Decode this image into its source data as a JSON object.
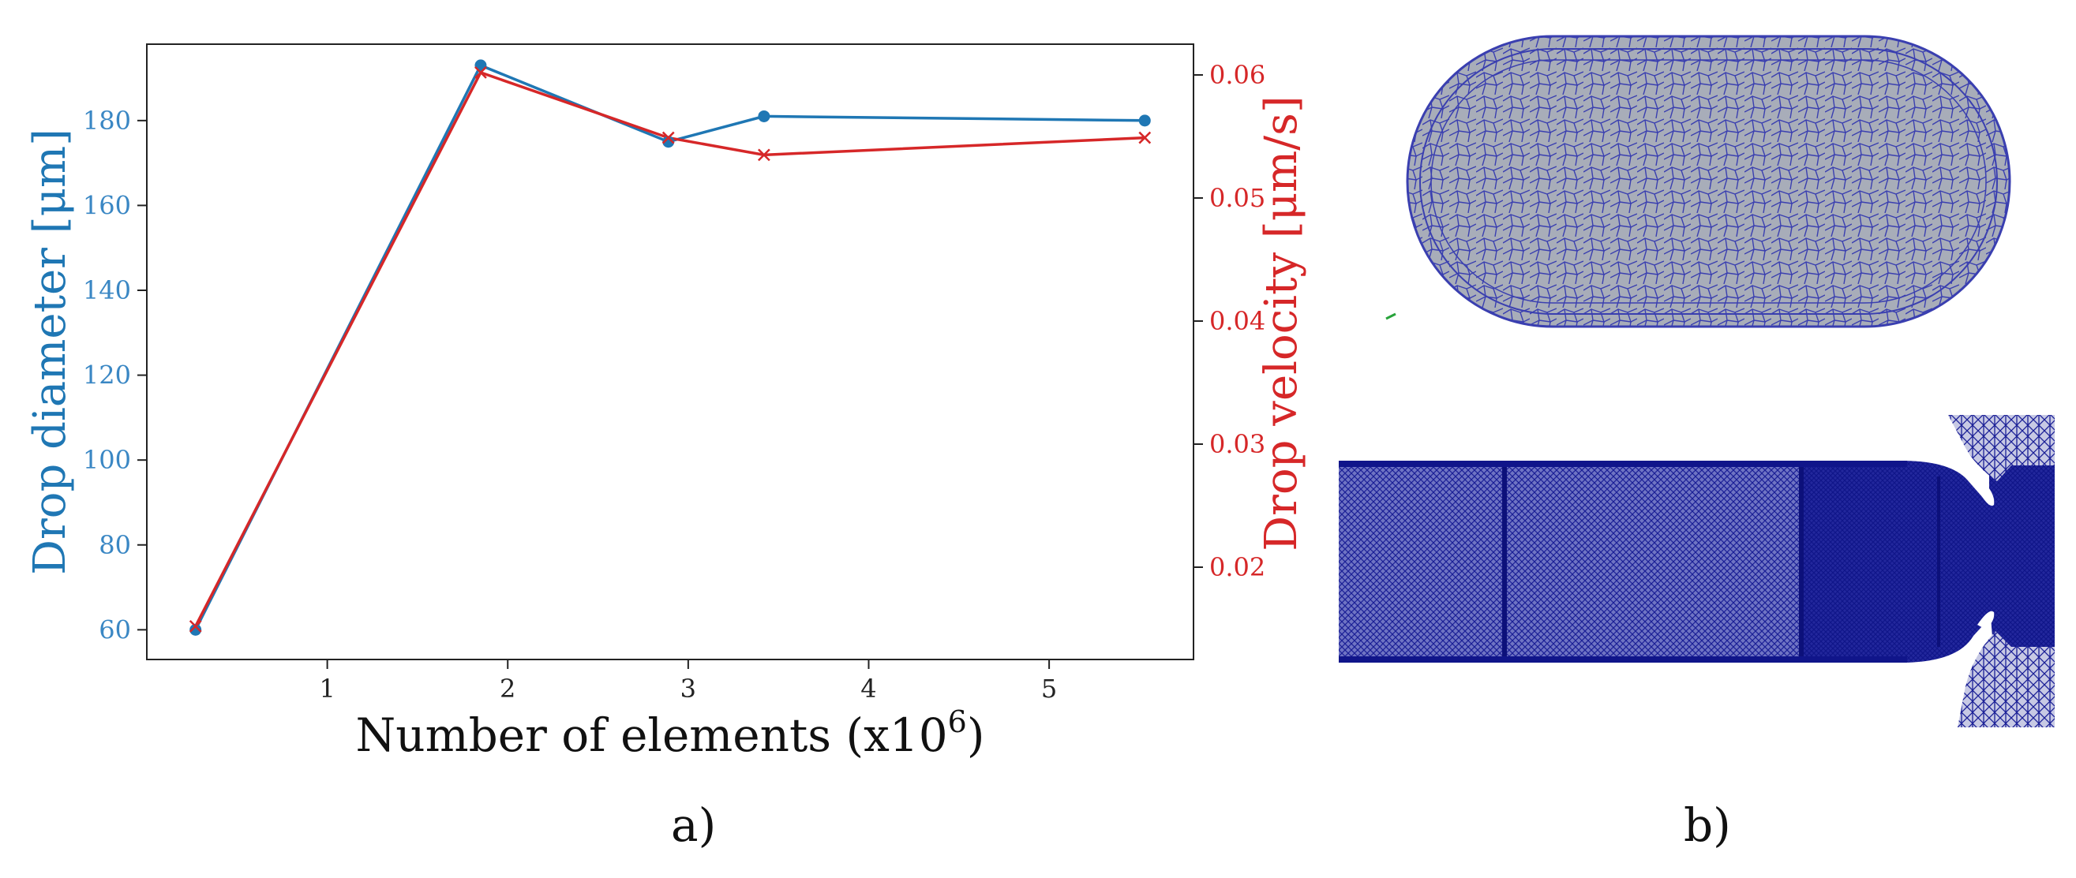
{
  "panels": {
    "a_label": "a)",
    "b_label": "b)"
  },
  "chart_data": {
    "type": "line",
    "xlabel": "Number of elements (x10",
    "xlabel_sup": "6",
    "xlabel_close": ")",
    "ylabel_left": "Drop diameter [μm]",
    "ylabel_right": "Drop velocity [μm/s]",
    "xlim": [
      0.0,
      5.8
    ],
    "ylim_left": [
      53,
      198
    ],
    "ylim_right": [
      0.0125,
      0.0625
    ],
    "x_ticks": [
      1,
      2,
      3,
      4,
      5
    ],
    "y_left_ticks": [
      60,
      80,
      100,
      120,
      140,
      160,
      180
    ],
    "y_right_ticks": [
      0.02,
      0.03,
      0.04,
      0.05,
      0.06
    ],
    "y_right_tick_labels": [
      "0.02",
      "0.03",
      "0.04",
      "0.05",
      "0.06"
    ],
    "grid": false,
    "series": [
      {
        "name": "Drop diameter",
        "axis": "left",
        "color": "#1f77b4",
        "marker": "circle",
        "x": [
          0.27,
          1.85,
          2.89,
          3.42,
          5.53
        ],
        "y": [
          60,
          193,
          175,
          181,
          180
        ]
      },
      {
        "name": "Drop velocity",
        "axis": "right",
        "color": "#d62728",
        "marker": "x",
        "x": [
          0.27,
          1.85,
          2.89,
          3.42,
          5.53
        ],
        "y": [
          0.0152,
          0.0602,
          0.0549,
          0.0535,
          0.0549
        ]
      }
    ]
  },
  "mesh_images": {
    "top": {
      "description_icon": "capsule-mesh-cross-section",
      "fill": "#a8adb9",
      "edge": "#3a3fb0"
    },
    "bottom": {
      "description_icon": "channel-mesh-longitudinal",
      "fill": "#1a1f96",
      "edge": "#0c107a"
    }
  }
}
